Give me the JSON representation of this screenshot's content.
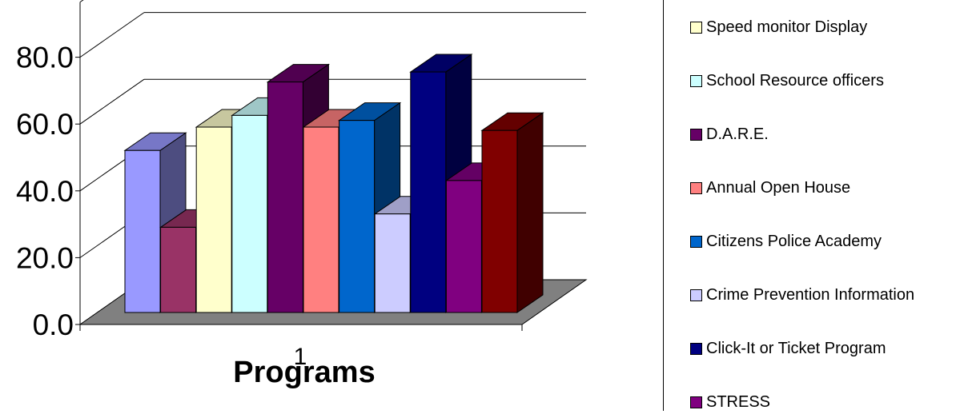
{
  "chart_data": {
    "type": "bar",
    "style": "3d-clustered-column",
    "categories": [
      "1"
    ],
    "xlabel": "Programs",
    "ylabel": "",
    "ylim": [
      0,
      80
    ],
    "yticks": [
      "0.0",
      "20.0",
      "40.0",
      "60.0",
      "80.0"
    ],
    "grid": true,
    "legend_position": "right",
    "series": [
      {
        "name": "",
        "values": [
          48.5
        ],
        "color": "#9999FF"
      },
      {
        "name": "",
        "values": [
          25.5
        ],
        "color": "#993366"
      },
      {
        "name": "Speed monitor Display",
        "values": [
          55.5
        ],
        "color": "#FFFFCC"
      },
      {
        "name": "School Resource officers",
        "values": [
          59.0
        ],
        "color": "#CCFFFF"
      },
      {
        "name": "D.A.R.E.",
        "values": [
          69.0
        ],
        "color": "#660066"
      },
      {
        "name": "Annual Open House",
        "values": [
          55.5
        ],
        "color": "#FF8080"
      },
      {
        "name": "Citizens Police Academy",
        "values": [
          57.5
        ],
        "color": "#0066CC"
      },
      {
        "name": "Crime Prevention Information",
        "values": [
          29.5
        ],
        "color": "#CCCCFF"
      },
      {
        "name": "Click-It or Ticket Program",
        "values": [
          72.0
        ],
        "color": "#000080"
      },
      {
        "name": "STRESS",
        "values": [
          39.5
        ],
        "color": "#800080"
      },
      {
        "name": "",
        "values": [
          54.5
        ],
        "color": "#800000"
      }
    ]
  }
}
